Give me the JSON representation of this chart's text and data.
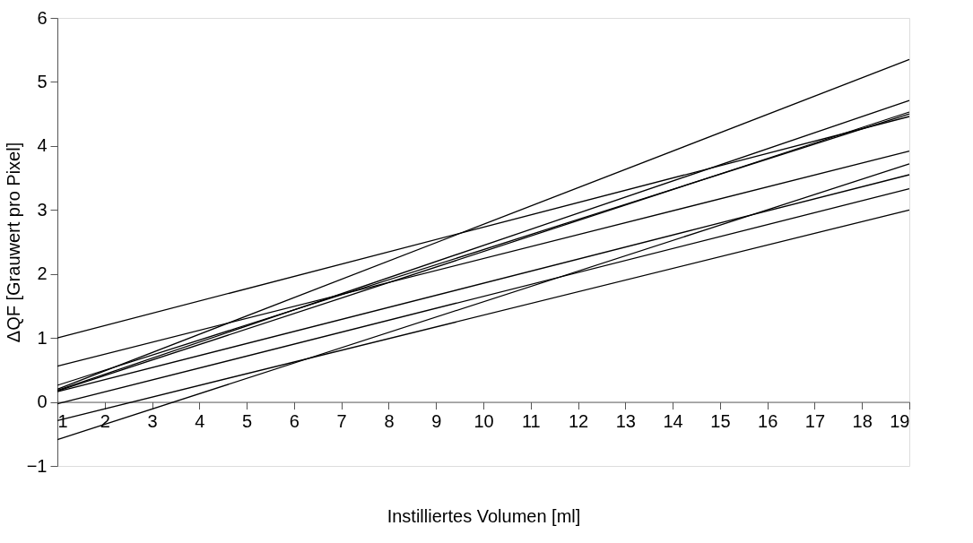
{
  "chart_data": {
    "type": "line",
    "xlabel": "Instilliertes Volumen [ml]",
    "ylabel": "ΔQF [Grauwert pro Pixel]",
    "x": [
      1,
      19
    ],
    "series": [
      {
        "color": "#000000",
        "values": [
          1.0,
          4.46
        ]
      },
      {
        "color": "#000000",
        "values": [
          0.56,
          3.92
        ]
      },
      {
        "color": "#000000",
        "values": [
          0.26,
          4.5
        ]
      },
      {
        "color": "#000000",
        "values": [
          0.2,
          5.35
        ]
      },
      {
        "color": "#000000",
        "values": [
          0.18,
          4.71
        ]
      },
      {
        "color": "#000000",
        "values": [
          0.17,
          4.53
        ]
      },
      {
        "color": "#000000",
        "values": [
          0.16,
          3.55
        ]
      },
      {
        "color": "#000000",
        "values": [
          -0.03,
          3.33
        ]
      },
      {
        "color": "#000000",
        "values": [
          -0.29,
          3.0
        ]
      },
      {
        "color": "#000000",
        "values": [
          -0.59,
          3.72
        ]
      }
    ],
    "xlim": [
      1,
      19
    ],
    "xticks": [
      1,
      2,
      3,
      4,
      5,
      6,
      7,
      8,
      9,
      10,
      11,
      12,
      13,
      14,
      15,
      16,
      17,
      18,
      19
    ],
    "ylim": [
      -1,
      6
    ],
    "yticks": [
      -1,
      0,
      1,
      2,
      3,
      4,
      5,
      6
    ],
    "grid": false,
    "legend": false,
    "marker": "none",
    "line_style": "solid"
  }
}
